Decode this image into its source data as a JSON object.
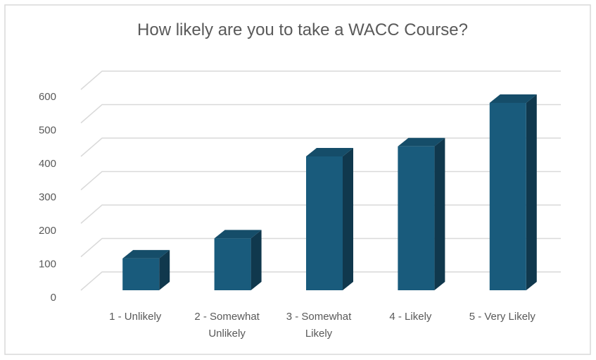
{
  "chart_data": {
    "type": "bar3d",
    "title": "How likely are you to take a WACC Course?",
    "categories": [
      "1 - Unlikely",
      "2 - Somewhat Unlikely",
      "3 - Somewhat Likely",
      "4 - Likely",
      "5 - Very Likely"
    ],
    "values": [
      95,
      155,
      400,
      430,
      560
    ],
    "color": "#195b7c",
    "ylim": [
      0,
      600
    ],
    "yticks": [
      0,
      100,
      200,
      300,
      400,
      500,
      600
    ],
    "grid": true
  }
}
